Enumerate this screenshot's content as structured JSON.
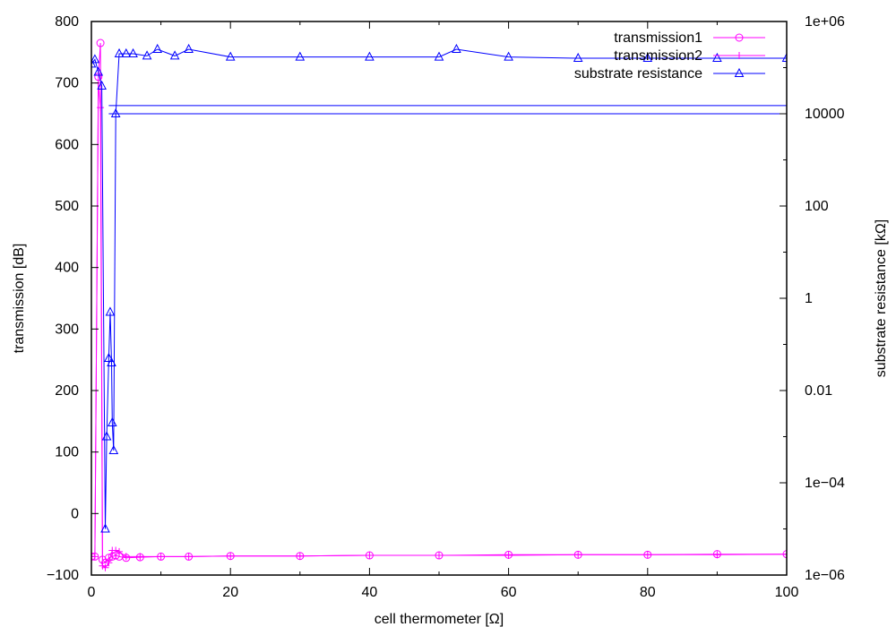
{
  "chart_data": {
    "type": "line",
    "title": "",
    "xlabel": "cell thermometer [Ω]",
    "ylabel": "transmission [dB]",
    "y2label": "substrate resistance [kΩ]",
    "xlim": [
      0,
      100
    ],
    "ylim": [
      -100,
      800
    ],
    "y2lim": [
      1e-06,
      1000000.0
    ],
    "y2_scale": "log",
    "grid": false,
    "legend_position": "top-right",
    "x_ticks": [
      0,
      20,
      40,
      60,
      80,
      100
    ],
    "y_ticks": [
      -100,
      0,
      100,
      200,
      300,
      400,
      500,
      600,
      700,
      800
    ],
    "y2_ticks": [
      1e-06,
      0.0001,
      0.01,
      1,
      100,
      10000,
      1000000.0
    ],
    "x_tick_labels": [
      "0",
      "20",
      "40",
      "60",
      "80",
      "100"
    ],
    "y_tick_labels": [
      "−100",
      "0",
      "100",
      "200",
      "300",
      "400",
      "500",
      "600",
      "700",
      "800"
    ],
    "y2_tick_labels": [
      "1e−06",
      "1e−04",
      "0.01",
      "1",
      "100",
      "10000",
      "1e+06"
    ],
    "series": [
      {
        "name": "transmission1",
        "axis": "y",
        "marker": "circle",
        "color": "#ff00ff",
        "x": [
          0,
          0.5,
          1.0,
          1.3,
          1.6,
          2.0,
          2.5,
          3.0,
          3.5,
          4.0,
          5,
          7,
          10,
          14,
          20,
          30,
          40,
          50,
          60,
          70,
          80,
          90,
          100
        ],
        "y": [
          -70,
          -70,
          710,
          765,
          -75,
          -80,
          -72,
          -70,
          -68,
          -70,
          -72,
          -71,
          -70,
          -70,
          -69,
          -69,
          -68,
          -68,
          -67,
          -67,
          -67,
          -66,
          -66
        ]
      },
      {
        "name": "transmission2",
        "axis": "y",
        "marker": "plus",
        "color": "#ff00ff",
        "x": [
          0,
          0.5,
          1.0,
          1.3,
          1.6,
          2.0,
          2.5,
          3.0,
          3.5,
          4.0,
          5,
          7,
          10,
          14,
          20,
          30,
          40,
          50,
          60,
          70,
          80,
          90,
          100
        ],
        "y": [
          -70,
          -70,
          700,
          660,
          -85,
          -88,
          -80,
          -60,
          -60,
          -62,
          -70,
          -70,
          -70,
          -70,
          -69,
          -69,
          -68,
          -68,
          -68,
          -67,
          -67,
          -67,
          -66
        ]
      },
      {
        "name": "substrate resistance",
        "axis": "y2",
        "marker": "triangle",
        "color": "#0000ff",
        "x": [
          0,
          0.5,
          1.0,
          1.5,
          2.0,
          2.2,
          2.5,
          2.7,
          2.9,
          3.0,
          3.2,
          3.5,
          4.0,
          5,
          6,
          8,
          9.5,
          12,
          14,
          20,
          30,
          40,
          50,
          52.5,
          60,
          70,
          80,
          90,
          100
        ],
        "y": [
          120000,
          150000,
          80000,
          40000,
          1e-05,
          0.001,
          0.05,
          0.5,
          0.04,
          0.002,
          0.0005,
          10000,
          200000,
          200000,
          200000,
          180000,
          250000,
          180000,
          250000,
          170000,
          170000,
          170000,
          170000,
          250000,
          170000,
          160000,
          160000,
          160000,
          160000
        ]
      }
    ],
    "reference_lines": {
      "axis": "y2",
      "color": "#0000ff",
      "x_range": [
        2.5,
        100
      ],
      "values": [
        10000,
        15000
      ]
    }
  }
}
